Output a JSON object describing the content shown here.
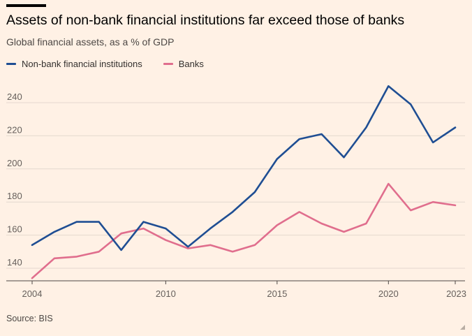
{
  "header": {
    "title": "Assets of non-bank financial institutions far exceed those of banks",
    "subtitle": "Global financial assets, as a % of GDP"
  },
  "footer": {
    "source": "Source: BIS"
  },
  "colors": {
    "background": "#fff1e5",
    "gridline": "#e4d8ce",
    "nbfi": "#1f4e93",
    "banks": "#e06e8d"
  },
  "chart_data": {
    "type": "line",
    "x": [
      2004,
      2005,
      2006,
      2007,
      2008,
      2009,
      2010,
      2011,
      2012,
      2013,
      2014,
      2015,
      2016,
      2017,
      2018,
      2019,
      2020,
      2021,
      2022,
      2023
    ],
    "series": [
      {
        "name": "Non-bank financial institutions",
        "color": "#1f4e93",
        "values": [
          154,
          162,
          168,
          168,
          151,
          168,
          164,
          153,
          164,
          174,
          186,
          206,
          218,
          221,
          207,
          225,
          250,
          239,
          216,
          225
        ]
      },
      {
        "name": "Banks",
        "color": "#e06e8d",
        "values": [
          134,
          146,
          147,
          150,
          161,
          164,
          157,
          152,
          154,
          150,
          154,
          166,
          174,
          167,
          162,
          167,
          191,
          175,
          180,
          178
        ]
      }
    ],
    "xticks": [
      2004,
      2010,
      2015,
      2020,
      2023
    ],
    "yticks": [
      140,
      160,
      180,
      200,
      220,
      240
    ],
    "ylim": [
      132,
      255
    ],
    "xlim": [
      2004,
      2023
    ],
    "legend": "top-left",
    "grid": "horizontal"
  }
}
